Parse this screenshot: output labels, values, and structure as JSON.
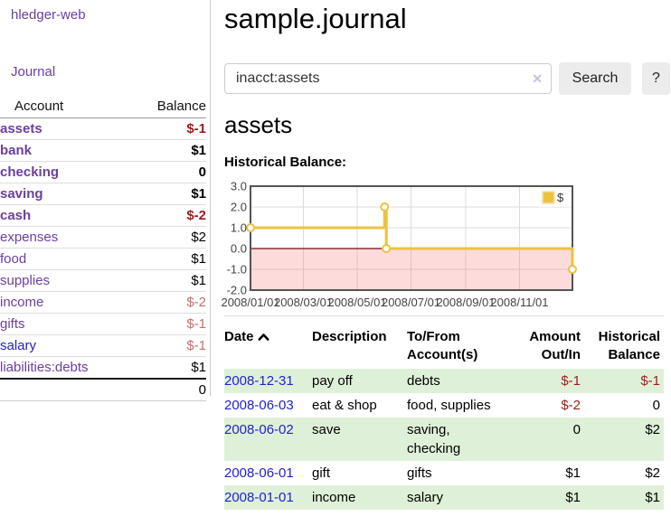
{
  "app": {
    "brand": "hledger-web",
    "nav_journal": "Journal"
  },
  "sidebar": {
    "header": {
      "account": "Account",
      "balance": "Balance"
    },
    "accounts": [
      {
        "name": "assets",
        "level": 1,
        "bold": true,
        "balance": "$-1",
        "balance_style": "neg",
        "link_style": "purple"
      },
      {
        "name": "bank",
        "level": 2,
        "bold": true,
        "balance": "$1",
        "balance_style": "plain",
        "link_style": "purple"
      },
      {
        "name": "checking",
        "level": 3,
        "bold": true,
        "balance": "0",
        "balance_style": "plain",
        "link_style": "purple"
      },
      {
        "name": "saving",
        "level": 3,
        "bold": true,
        "balance": "$1",
        "balance_style": "plain",
        "link_style": "purple"
      },
      {
        "name": "cash",
        "level": 2,
        "bold": true,
        "balance": "$-2",
        "balance_style": "neg",
        "link_style": "purple"
      },
      {
        "name": "expenses",
        "level": 1,
        "bold": false,
        "balance": "$2",
        "balance_style": "plain",
        "link_style": "purple"
      },
      {
        "name": "food",
        "level": 2,
        "bold": false,
        "balance": "$1",
        "balance_style": "plain",
        "link_style": "purple"
      },
      {
        "name": "supplies",
        "level": 2,
        "bold": false,
        "balance": "$1",
        "balance_style": "plain",
        "link_style": "purple"
      },
      {
        "name": "income",
        "level": 1,
        "bold": false,
        "balance": "$-2",
        "balance_style": "neg-light",
        "link_style": "purple"
      },
      {
        "name": "gifts",
        "level": 2,
        "bold": false,
        "balance": "$-1",
        "balance_style": "neg-light",
        "link_style": "purple"
      },
      {
        "name": "salary",
        "level": 2,
        "bold": false,
        "balance": "$-1",
        "balance_style": "neg-light",
        "link_style": "blue"
      },
      {
        "name": "liabilities:debts",
        "level": 1,
        "bold": false,
        "balance": "$1",
        "balance_style": "plain",
        "link_style": "purple"
      }
    ],
    "total": "0"
  },
  "header": {
    "title": "sample.journal"
  },
  "search": {
    "value": "inacct:assets",
    "clear_icon": "✕",
    "button_label": "Search",
    "help_label": "?"
  },
  "account_page": {
    "title": "assets",
    "chart_caption": "Historical Balance:"
  },
  "chart_data": {
    "type": "line",
    "step": true,
    "title": "Historical Balance",
    "legend": "$",
    "legend_position": "top-right",
    "grid": true,
    "ylim": [
      -2.0,
      3.0
    ],
    "yticks": [
      "3.0",
      "2.0",
      "1.0",
      "0.0",
      "-1.0",
      "-2.0"
    ],
    "ytick_values": [
      3,
      2,
      1,
      0,
      -1,
      -2
    ],
    "xtick_labels": [
      "2008/01/01",
      "2008/03/01",
      "2008/05/01",
      "2008/07/01",
      "2008/09/01",
      "2008/11/01"
    ],
    "xtick_days": [
      0,
      60,
      121,
      182,
      244,
      305
    ],
    "x_range_days": [
      0,
      365
    ],
    "series": [
      {
        "name": "$",
        "color": "#edc240",
        "x_dates": [
          "2008-01-01",
          "2008-06-01",
          "2008-06-03",
          "2008-12-31"
        ],
        "x_days": [
          0,
          152,
          154,
          365
        ],
        "values": [
          1,
          2,
          0,
          -1
        ]
      }
    ],
    "colors": {
      "line": "#edc240",
      "marker_fill": "#ffffff",
      "grid": "#dcdcdc",
      "border": "#545454",
      "zero_line": "#7c0a0a",
      "negative_region": "rgba(245,90,90,0.22)",
      "tick_text": "#444444"
    }
  },
  "register": {
    "headers": {
      "date": "Date",
      "description": "Description",
      "tofrom_1": "To/From",
      "tofrom_2": "Account(s)",
      "amount_1": "Amount",
      "amount_2": "Out/In",
      "balance_1": "Historical",
      "balance_2": "Balance"
    },
    "rows": [
      {
        "date": "2008-12-31",
        "description": "pay off",
        "accounts": "debts",
        "amount": "$-1",
        "amount_neg": true,
        "balance": "$-1",
        "balance_neg": true,
        "shade": true
      },
      {
        "date": "2008-06-03",
        "description": "eat & shop",
        "accounts": "food, supplies",
        "amount": "$-2",
        "amount_neg": true,
        "balance": "0",
        "balance_neg": false,
        "shade": false
      },
      {
        "date": "2008-06-02",
        "description": "save",
        "accounts": "saving,\nchecking",
        "amount": "0",
        "amount_neg": false,
        "balance": "$2",
        "balance_neg": false,
        "shade": true
      },
      {
        "date": "2008-06-01",
        "description": "gift",
        "accounts": "gifts",
        "amount": "$1",
        "amount_neg": false,
        "balance": "$2",
        "balance_neg": false,
        "shade": false
      },
      {
        "date": "2008-01-01",
        "description": "income",
        "accounts": "salary",
        "amount": "$1",
        "amount_neg": false,
        "balance": "$1",
        "balance_neg": false,
        "shade": true
      }
    ]
  }
}
